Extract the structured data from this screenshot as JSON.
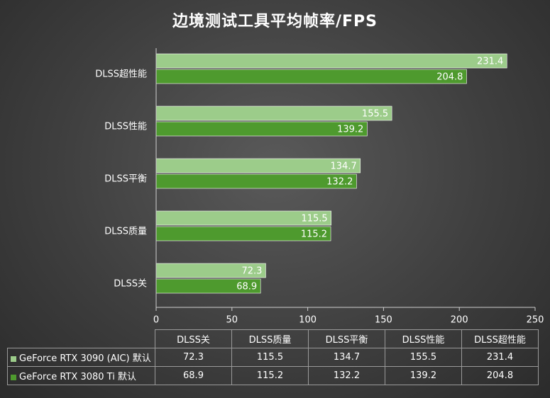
{
  "chart_data": {
    "type": "bar",
    "orientation": "horizontal",
    "title": "边境测试工具平均帧率/FPS",
    "categories": [
      "DLSS超性能",
      "DLSS性能",
      "DLSS平衡",
      "DLSS质量",
      "DLSS关"
    ],
    "series": [
      {
        "name": "GeForce RTX 3090 (AIC) 默认",
        "color": "#9ccc8a",
        "values": [
          231.4,
          155.5,
          134.7,
          115.5,
          72.3
        ],
        "labels": [
          "231.4",
          "155.5",
          "134.7",
          "115.5",
          "72.3"
        ]
      },
      {
        "name": "GeForce RTX 3080 Ti 默认",
        "color": "#4e9a2e",
        "values": [
          204.8,
          139.2,
          132.2,
          115.2,
          68.9
        ],
        "labels": [
          "204.8",
          "139.2",
          "132.2",
          "115.2",
          "68.9"
        ]
      }
    ],
    "xlim": [
      0,
      250
    ],
    "xticks": [
      "0",
      "50",
      "100",
      "150",
      "200",
      "250"
    ],
    "grid": false,
    "legend": "table-bottom",
    "table": {
      "columns": [
        "DLSS关",
        "DLSS质量",
        "DLSS平衡",
        "DLSS性能",
        "DLSS超性能"
      ],
      "rows": [
        [
          "72.3",
          "115.5",
          "134.7",
          "155.5",
          "231.4"
        ],
        [
          "68.9",
          "115.2",
          "132.2",
          "139.2",
          "204.8"
        ]
      ]
    }
  }
}
